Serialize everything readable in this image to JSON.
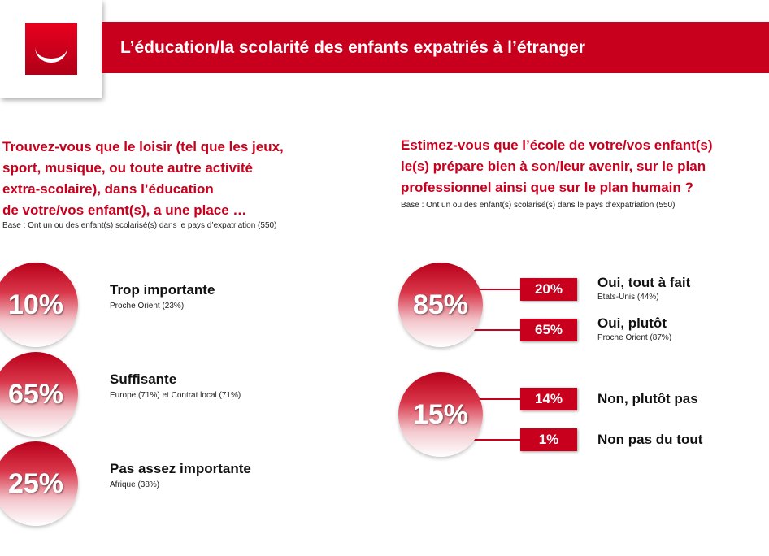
{
  "header": {
    "title": "L’éducation/la scolarité des enfants expatriés à l’étranger"
  },
  "left": {
    "question": [
      "Trouvez-vous que le loisir (tel que les jeux,",
      "sport, musique, ou toute autre activité",
      "extra-scolaire), dans l’éducation",
      "de votre/vos enfant(s), a une place …"
    ],
    "base": "Base :  Ont un ou des enfant(s) scolarisé(s) dans le pays d’expatriation (550)",
    "items": [
      {
        "value": "10%",
        "label": "Trop importante",
        "detail": "Proche Orient (23%)"
      },
      {
        "value": "65%",
        "label": "Suffisante",
        "detail": "Europe (71%) et Contrat local (71%)"
      },
      {
        "value": "25%",
        "label": "Pas assez importante",
        "detail": "Afrique (38%)"
      }
    ]
  },
  "right": {
    "question": [
      "Estimez-vous que l’école de votre/vos enfant(s)",
      "le(s) prépare bien à son/leur avenir, sur le plan",
      "professionnel ainsi que sur le plan humain ?"
    ],
    "base": "Base :  Ont un ou des enfant(s) scolarisé(s) dans le pays d’expatriation (550)",
    "groups": [
      {
        "value": "85%",
        "items": [
          {
            "value": "20%",
            "label": "Oui, tout à fait",
            "detail": "Etats-Unis (44%)"
          },
          {
            "value": "65%",
            "label": "Oui, plutôt",
            "detail": "Proche Orient (87%)"
          }
        ]
      },
      {
        "value": "15%",
        "items": [
          {
            "value": "14%",
            "label": "Non, plutôt pas"
          },
          {
            "value": "1%",
            "label": "Non pas du tout"
          }
        ]
      }
    ]
  }
}
